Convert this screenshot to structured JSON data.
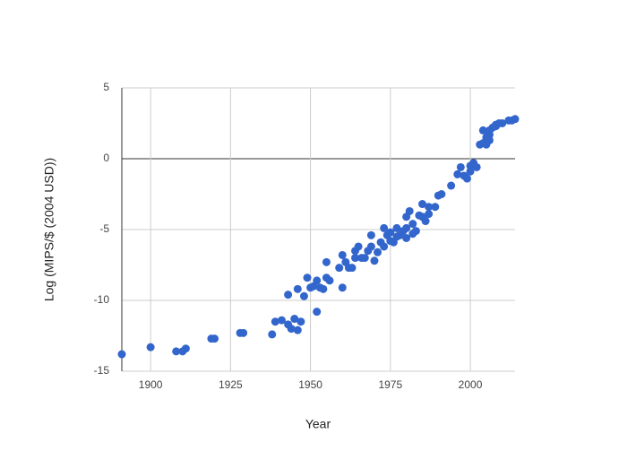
{
  "chart_data": {
    "type": "scatter",
    "x_label": "Year",
    "y_label": "Log (MIPS/$ (2004 USD))",
    "color": "#3366cc",
    "grid": true,
    "xlim": [
      1891,
      2014
    ],
    "ylim": [
      -15,
      5
    ],
    "xticks": [
      1900,
      1925,
      1950,
      1975,
      2000
    ],
    "yticks": [
      -15,
      -10,
      -5,
      0,
      5
    ],
    "x": [
      1891,
      1900,
      1908,
      1910,
      1911,
      1919,
      1920,
      1928,
      1929,
      1938,
      1939,
      1941,
      1943,
      1943,
      1944,
      1945,
      1946,
      1946,
      1947,
      1948,
      1949,
      1950,
      1951,
      1952,
      1952,
      1953,
      1954,
      1955,
      1955,
      1956,
      1959,
      1960,
      1960,
      1961,
      1962,
      1963,
      1964,
      1964,
      1965,
      1966,
      1967,
      1968,
      1969,
      1969,
      1970,
      1971,
      1972,
      1973,
      1973,
      1974,
      1975,
      1975,
      1976,
      1977,
      1977,
      1978,
      1979,
      1980,
      1980,
      1980,
      1981,
      1982,
      1982,
      1983,
      1984,
      1985,
      1985,
      1986,
      1987,
      1987,
      1989,
      1990,
      1991,
      1994,
      1996,
      1997,
      1998,
      1999,
      2000,
      2000,
      2001,
      2002,
      2003,
      2004,
      2004,
      2005,
      2005,
      2006,
      2006,
      2006,
      2007,
      2008,
      2008,
      2009,
      2010,
      2012,
      2013,
      2014
    ],
    "values": [
      -13.8,
      -13.3,
      -13.6,
      -13.6,
      -13.4,
      -12.7,
      -12.7,
      -12.3,
      -12.3,
      -12.4,
      -11.5,
      -11.4,
      -9.6,
      -11.7,
      -12.0,
      -11.3,
      -9.2,
      -12.1,
      -11.5,
      -9.7,
      -8.4,
      -9.1,
      -9.0,
      -8.6,
      -10.8,
      -9.1,
      -9.2,
      -7.3,
      -8.4,
      -8.6,
      -7.7,
      -6.8,
      -9.1,
      -7.3,
      -7.7,
      -7.7,
      -6.5,
      -7.0,
      -6.2,
      -7.0,
      -7.0,
      -6.5,
      -5.4,
      -6.2,
      -7.2,
      -6.6,
      -5.9,
      -4.9,
      -6.2,
      -5.4,
      -5.8,
      -5.2,
      -5.9,
      -4.9,
      -5.5,
      -5.4,
      -5.1,
      -5.6,
      -4.9,
      -4.1,
      -3.7,
      -5.3,
      -4.6,
      -5.1,
      -4.0,
      -4.1,
      -3.2,
      -4.4,
      -3.9,
      -3.4,
      -3.4,
      -2.6,
      -2.5,
      -1.9,
      -1.1,
      -0.6,
      -1.2,
      -1.4,
      -0.5,
      -0.9,
      -0.3,
      -0.6,
      1.0,
      2.0,
      1.1,
      1.5,
      1.0,
      1.7,
      2.0,
      1.3,
      2.2,
      2.3,
      2.4,
      2.5,
      2.5,
      2.7,
      2.7,
      2.8
    ]
  }
}
